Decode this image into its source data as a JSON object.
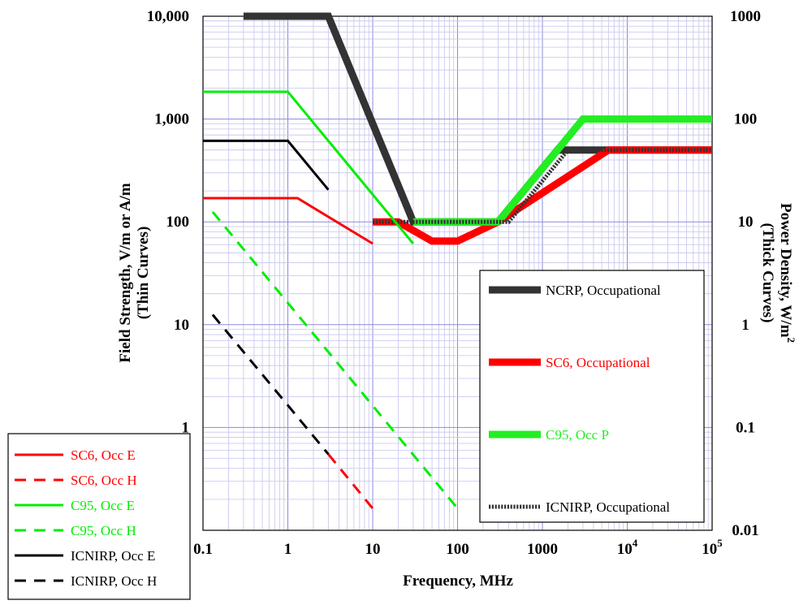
{
  "chart_data": {
    "type": "line",
    "xlabel": "Frequency, MHz",
    "ylabel_left": "Field Strength, V/m or A/m",
    "ylabel_left_sub": "(Thin Curves)",
    "ylabel_right": "Power Density, W/m",
    "ylabel_right_sup": "2",
    "ylabel_right_sub": "(Thick Curves)",
    "x_scale": "log",
    "y_scale": "log",
    "xlim": [
      0.1,
      100000
    ],
    "ylim_left": [
      0.1,
      10000
    ],
    "ylim_right": [
      0.01,
      1000
    ],
    "grid": true,
    "x_ticks": [
      {
        "value": 0.1,
        "label": "0.1"
      },
      {
        "value": 1,
        "label": "1"
      },
      {
        "value": 10,
        "label": "10"
      },
      {
        "value": 100,
        "label": "100"
      },
      {
        "value": 1000,
        "label": "1000"
      },
      {
        "value": 10000,
        "label": "10",
        "sup": "4"
      },
      {
        "value": 100000,
        "label": "10",
        "sup": "5"
      }
    ],
    "y_ticks_left": [
      {
        "value": 1,
        "label": "1"
      },
      {
        "value": 10,
        "label": "10"
      },
      {
        "value": 100,
        "label": "100"
      },
      {
        "value": 1000,
        "label": "1,000"
      },
      {
        "value": 10000,
        "label": "10,000"
      }
    ],
    "y_ticks_right": [
      {
        "value": 0.01,
        "label": "0.01"
      },
      {
        "value": 0.1,
        "label": "0.1"
      },
      {
        "value": 1,
        "label": "1"
      },
      {
        "value": 10,
        "label": "10"
      },
      {
        "value": 100,
        "label": "100"
      },
      {
        "value": 1000,
        "label": "1000"
      }
    ],
    "thin_series": [
      {
        "name": "SC6, Occ E",
        "color": "#ff0000",
        "dash": false,
        "points": [
          [
            0.1,
            170
          ],
          [
            1.3,
            170
          ],
          [
            10,
            61.4
          ]
        ]
      },
      {
        "name": "SC6, Occ H",
        "color": "#ff0000",
        "dash": true,
        "points": [
          [
            3,
            0.55
          ],
          [
            10,
            0.163
          ]
        ]
      },
      {
        "name": "C95, Occ E",
        "color": "#00ee00",
        "dash": false,
        "points": [
          [
            0.1,
            1842
          ],
          [
            1,
            1842
          ],
          [
            30,
            61.4
          ]
        ]
      },
      {
        "name": "C95, Occ H",
        "color": "#00ee00",
        "dash": true,
        "points": [
          [
            0.13,
            125
          ],
          [
            100,
            0.163
          ]
        ]
      },
      {
        "name": "ICNIRP, Occ E",
        "color": "#000000",
        "dash": false,
        "points": [
          [
            0.1,
            614
          ],
          [
            1,
            614
          ],
          [
            3,
            205
          ]
        ]
      },
      {
        "name": "ICNIRP, Occ H",
        "color": "#000000",
        "dash": true,
        "points": [
          [
            0.13,
            12.5
          ],
          [
            3,
            0.55
          ]
        ]
      }
    ],
    "thick_series": [
      {
        "name": "NCRP, Occupational",
        "color": "#333333",
        "dash": false,
        "points": [
          [
            0.3,
            1000
          ],
          [
            3,
            1000
          ],
          [
            30,
            10
          ],
          [
            300,
            10
          ],
          [
            1500,
            50
          ],
          [
            100000,
            50
          ]
        ]
      },
      {
        "name": "SC6, Occupational",
        "color": "#ff0000",
        "dash": false,
        "points": [
          [
            10,
            10
          ],
          [
            20,
            10
          ],
          [
            50,
            6.5
          ],
          [
            100,
            6.5
          ],
          [
            300,
            10
          ],
          [
            6000,
            50
          ],
          [
            100000,
            50
          ]
        ]
      },
      {
        "name": "C95, Occ P",
        "color": "#22ee22",
        "dash": false,
        "points": [
          [
            30,
            10
          ],
          [
            300,
            10
          ],
          [
            3000,
            100
          ],
          [
            100000,
            100
          ]
        ]
      },
      {
        "name": "ICNIRP, Occupational",
        "color": "#333333",
        "dash": true,
        "points": [
          [
            10,
            10
          ],
          [
            400,
            10
          ],
          [
            2000,
            50
          ],
          [
            100000,
            50
          ]
        ]
      }
    ]
  }
}
